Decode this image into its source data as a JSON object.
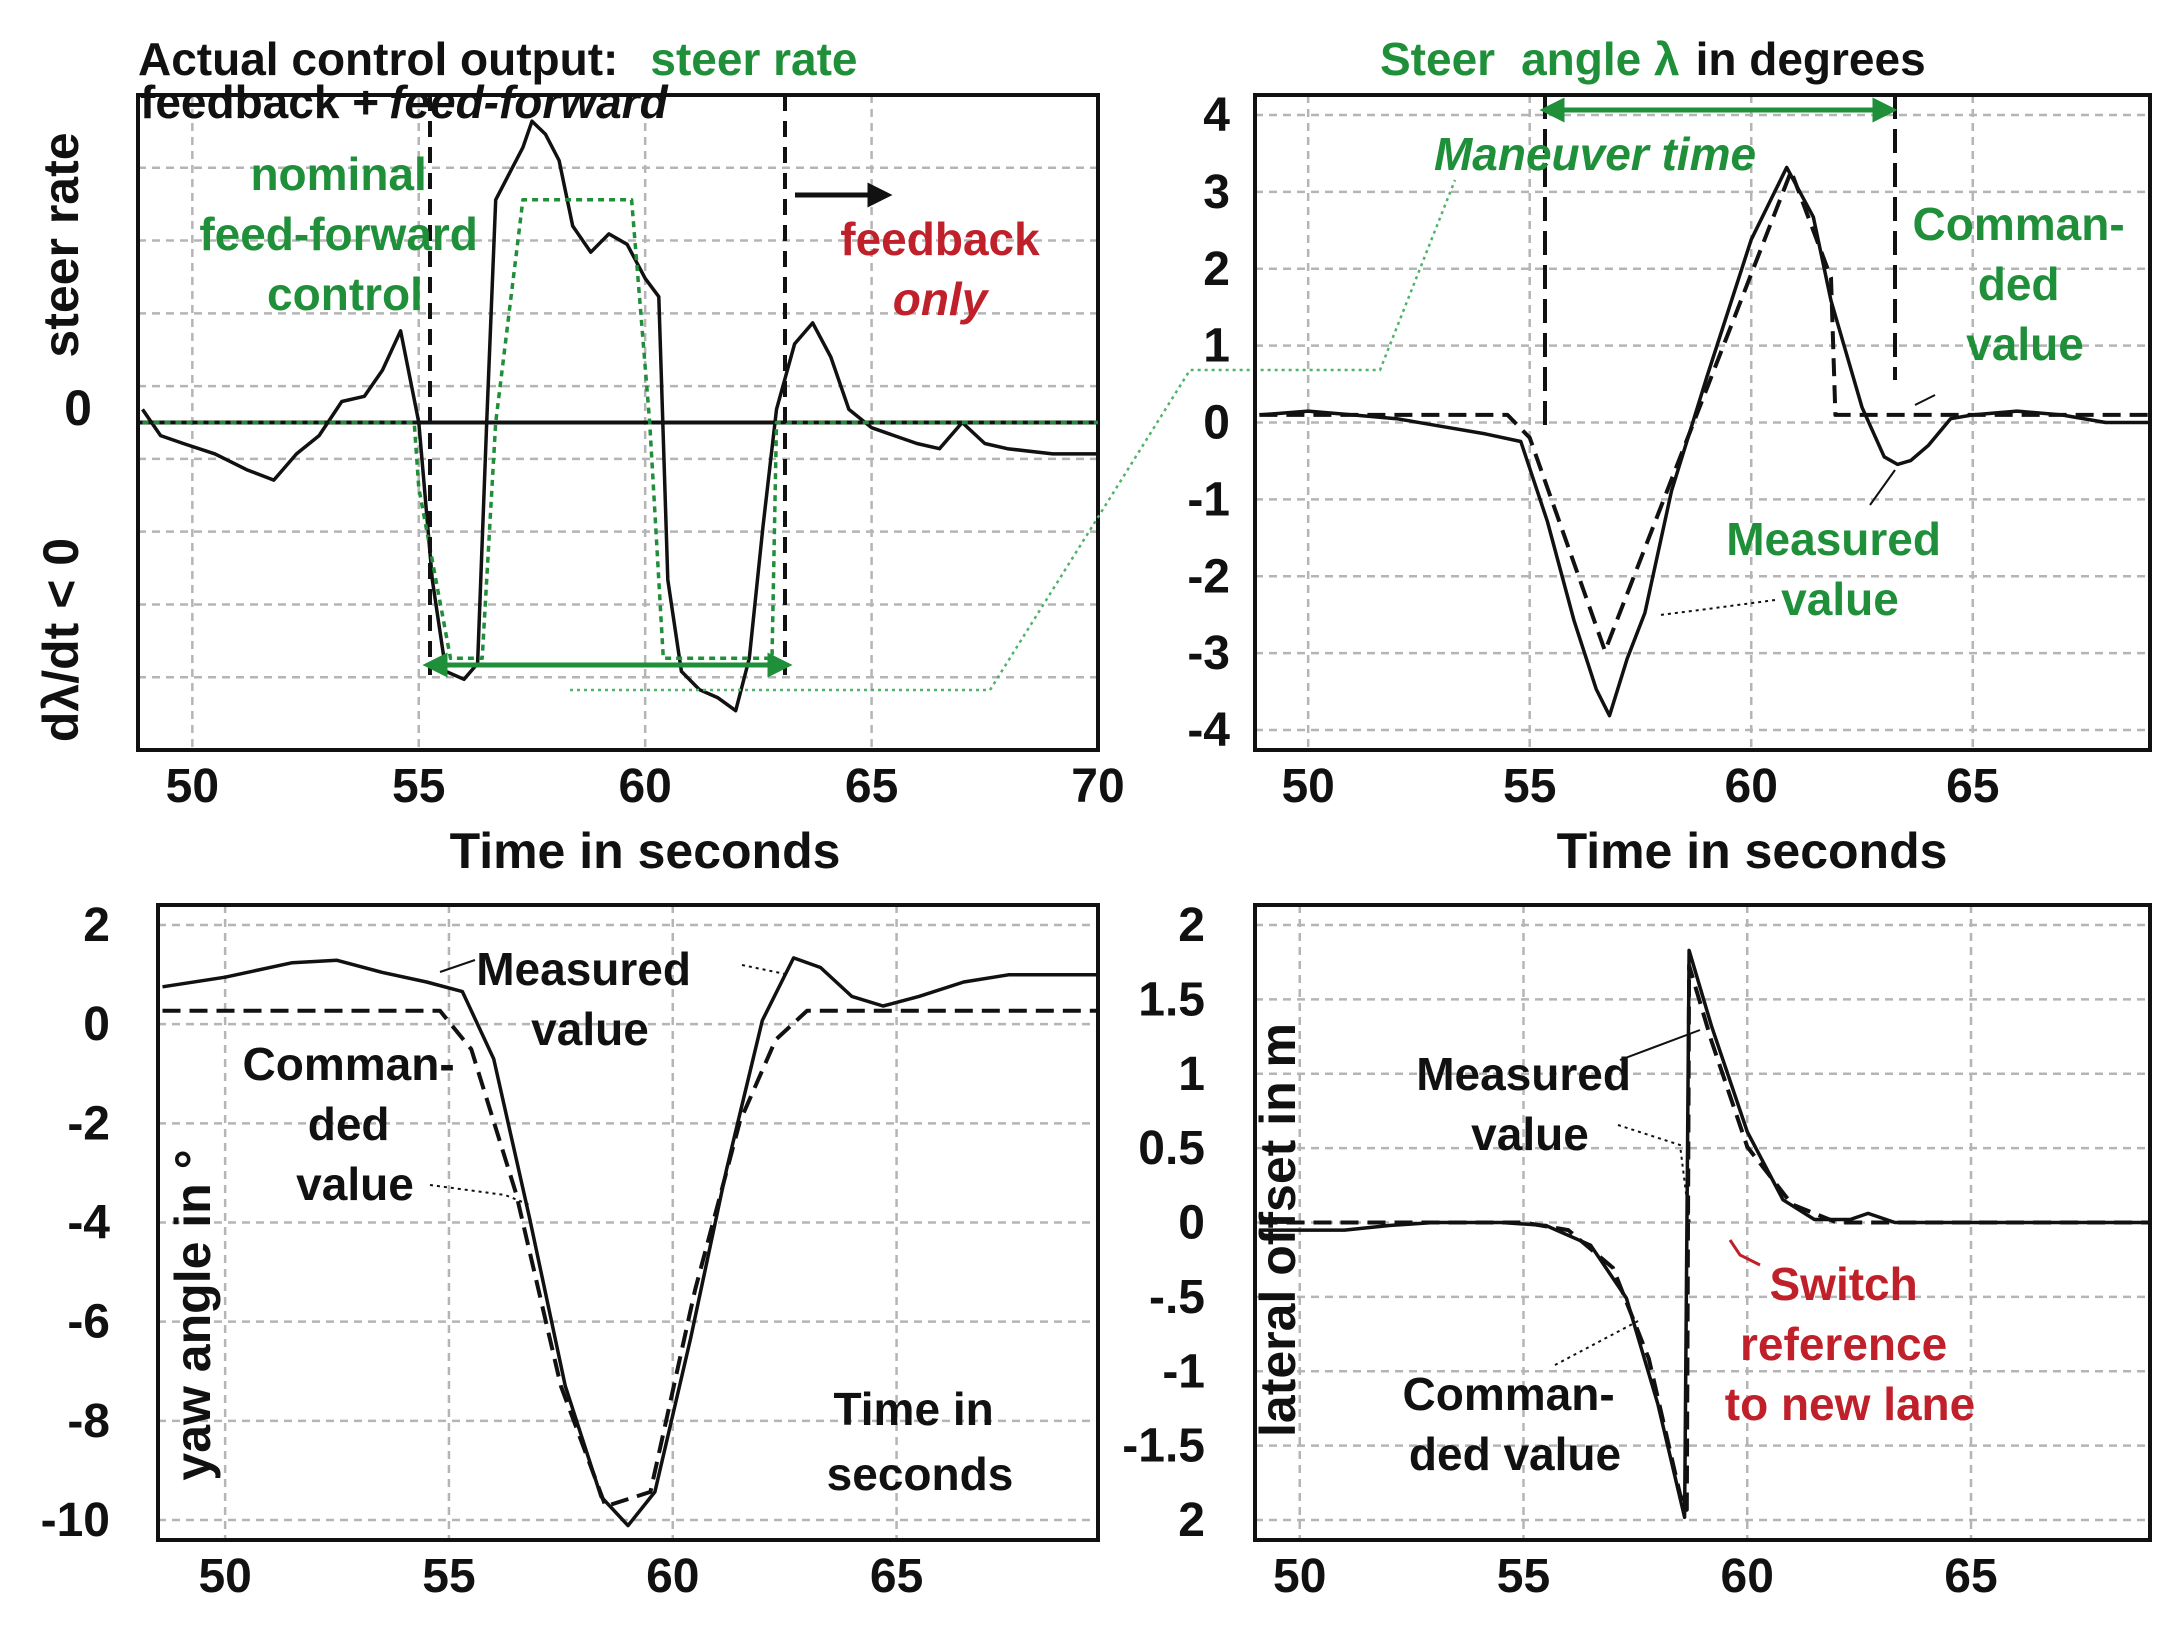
{
  "colors": {
    "green": "#1f8f3a",
    "red": "#c0202a",
    "black": "#111111",
    "grid": "#b5b5b5"
  },
  "chart_data": [
    {
      "id": "steer_rate",
      "type": "line",
      "title": "Actual control output:",
      "title_suffix": "steer rate",
      "subtitle_a": "feedback +",
      "subtitle_b": "feed-forward",
      "xlabel": "Time in seconds",
      "ylabel_top": "steer rate",
      "ylabel_zero": "0",
      "ylabel_bottom": "dλ/dt < 0",
      "xlim": [
        48.8,
        70
      ],
      "ylim": [
        -1.25,
        1.25
      ],
      "xticks": [
        "50",
        "55",
        "60",
        "65",
        "70"
      ],
      "annotations": {
        "nominal": [
          "nominal",
          "feed-forward",
          "control"
        ],
        "feedback": "feedback",
        "only": "only"
      },
      "series": [
        {
          "style": "measured",
          "x": [
            48.9,
            49.3,
            49.8,
            50.5,
            51.2,
            51.8,
            52.3,
            52.8,
            53.3,
            53.8,
            54.2,
            54.6,
            55.0,
            55.3,
            55.6,
            56.0,
            56.3,
            56.5,
            56.7,
            57.0,
            57.3,
            57.5,
            57.8,
            58.1,
            58.4,
            58.8,
            59.2,
            59.6,
            60.0,
            60.3,
            60.5,
            60.8,
            61.2,
            61.6,
            62.0,
            62.3,
            62.6,
            62.9,
            63.3,
            63.7,
            64.1,
            64.5,
            65.0,
            65.5,
            66.0,
            66.5,
            67.0,
            67.5,
            68.0,
            69.0,
            70.0
          ],
          "y": [
            0.05,
            -0.05,
            -0.08,
            -0.12,
            -0.18,
            -0.22,
            -0.12,
            -0.05,
            0.08,
            0.1,
            0.2,
            0.35,
            0.0,
            -0.6,
            -0.95,
            -0.98,
            -0.92,
            0.0,
            0.85,
            0.95,
            1.05,
            1.15,
            1.1,
            1.0,
            0.75,
            0.65,
            0.72,
            0.68,
            0.55,
            0.48,
            -0.6,
            -0.95,
            -1.02,
            -1.05,
            -1.1,
            -0.9,
            -0.4,
            0.05,
            0.3,
            0.38,
            0.25,
            0.05,
            -0.02,
            -0.05,
            -0.08,
            -0.1,
            0.0,
            -0.08,
            -0.1,
            -0.12,
            -0.12
          ]
        },
        {
          "style": "nominal",
          "x": [
            48.9,
            54.9,
            55.0,
            55.7,
            56.4,
            56.7,
            57.3,
            59.7,
            60.1,
            60.4,
            62.0,
            62.8,
            62.9,
            70.0
          ],
          "y": [
            0.0,
            0.0,
            -0.25,
            -0.9,
            -0.9,
            0.0,
            0.85,
            0.85,
            0.0,
            -0.9,
            -0.9,
            -0.9,
            0.0,
            0.0
          ]
        }
      ]
    },
    {
      "id": "steer_angle",
      "type": "line",
      "title": "Steer",
      "title_suffix": "angle λ",
      "title_end": "in degrees",
      "xlabel": "Time in seconds",
      "xlim": [
        48.8,
        69
      ],
      "ylim": [
        -4.4,
        4.2
      ],
      "xticks": [
        "50",
        "55",
        "60",
        "65"
      ],
      "yticks": [
        "4",
        "3",
        "2",
        "1",
        "0",
        "-1",
        "-2",
        "-3",
        "-4"
      ],
      "annotations": {
        "maneuver_time": "Maneuver time",
        "commanded": [
          "Comman-",
          "ded",
          "value"
        ],
        "measured": [
          "Measured",
          "value"
        ]
      },
      "series": [
        {
          "name": "Commanded value",
          "style": "dashed",
          "x": [
            48.9,
            54.5,
            55.0,
            56.7,
            60.9,
            61.8,
            61.9,
            69.0
          ],
          "y": [
            0.0,
            0.0,
            -0.3,
            -3.1,
            3.2,
            1.8,
            0.0,
            0.0
          ]
        },
        {
          "name": "Measured value",
          "style": "measured",
          "x": [
            48.9,
            50.0,
            51.0,
            52.0,
            53.0,
            54.0,
            54.8,
            55.4,
            56.0,
            56.5,
            56.8,
            57.2,
            57.6,
            58.2,
            59.0,
            60.0,
            60.8,
            61.4,
            61.8,
            62.5,
            63.0,
            63.3,
            63.6,
            64.0,
            64.5,
            65.0,
            66.0,
            67.0,
            68.0,
            69.0
          ],
          "y": [
            0.0,
            0.05,
            0.0,
            -0.05,
            -0.15,
            -0.25,
            -0.35,
            -1.4,
            -2.7,
            -3.6,
            -3.95,
            -3.2,
            -2.6,
            -1.0,
            0.5,
            2.3,
            3.25,
            2.6,
            1.5,
            0.1,
            -0.55,
            -0.65,
            -0.6,
            -0.4,
            -0.05,
            0.0,
            0.05,
            0.0,
            -0.1,
            -0.1
          ]
        }
      ]
    },
    {
      "id": "yaw_angle",
      "type": "line",
      "ylabel": "yaw angle in °",
      "xlim": [
        48.5,
        69.5
      ],
      "ylim": [
        -11.2,
        2
      ],
      "xticks": [
        "50",
        "55",
        "60",
        "65"
      ],
      "yticks": [
        "2",
        "0",
        "-2",
        "-4",
        "-6",
        "-8",
        "-10"
      ],
      "annotations": {
        "measured": [
          "Measured",
          "value"
        ],
        "commanded": [
          "Comman-",
          "ded",
          "value"
        ],
        "time_label": [
          "Time in",
          "seconds"
        ]
      },
      "series": [
        {
          "name": "Commanded value",
          "style": "dashed",
          "x": [
            48.6,
            54.8,
            55.5,
            56.5,
            57.5,
            58.5,
            59.5,
            60.5,
            61.5,
            62.3,
            63.0,
            69.5
          ],
          "y": [
            -0.2,
            -0.2,
            -1.0,
            -4.0,
            -8.0,
            -10.5,
            -10.2,
            -6.0,
            -2.5,
            -0.8,
            -0.2,
            -0.2
          ]
        },
        {
          "name": "Measured value",
          "style": "solid",
          "x": [
            48.6,
            50.0,
            51.5,
            52.5,
            53.5,
            54.5,
            55.3,
            56.0,
            56.8,
            57.6,
            58.4,
            59.0,
            59.6,
            60.4,
            61.2,
            62.0,
            62.7,
            63.3,
            64.0,
            64.7,
            65.5,
            66.5,
            67.5,
            69.5
          ],
          "y": [
            0.3,
            0.5,
            0.8,
            0.85,
            0.6,
            0.4,
            0.2,
            -1.2,
            -4.5,
            -8.0,
            -10.3,
            -10.9,
            -10.2,
            -7.0,
            -3.5,
            -0.4,
            0.9,
            0.7,
            0.1,
            -0.1,
            0.1,
            0.4,
            0.55,
            0.55
          ]
        }
      ]
    },
    {
      "id": "lateral_offset",
      "type": "line",
      "ylabel": "lateral offset in m",
      "xlim": [
        49,
        69
      ],
      "ylim": [
        -2.1,
        2.1
      ],
      "xticks": [
        "50",
        "55",
        "60",
        "65"
      ],
      "yticks": [
        "2",
        "1.5",
        "1",
        "0.5",
        "0",
        "-.5",
        "-1",
        "-1.5",
        "2"
      ],
      "annotations": {
        "measured": [
          "Measured",
          "value"
        ],
        "commanded": [
          "Comman-",
          "ded value"
        ],
        "switch": [
          "Switch",
          "reference",
          "to new lane"
        ]
      },
      "series": [
        {
          "name": "Commanded value",
          "style": "dashed",
          "x": [
            49.1,
            55.0,
            56.0,
            57.0,
            57.8,
            58.5,
            58.65,
            58.7,
            59.2,
            60.0,
            61.0,
            62.0,
            69.0
          ],
          "y": [
            0.0,
            0.0,
            -0.05,
            -0.3,
            -0.9,
            -1.8,
            -1.9,
            1.7,
            1.2,
            0.5,
            0.12,
            0.0,
            0.0
          ]
        },
        {
          "name": "Measured value",
          "style": "solid",
          "x": [
            49.1,
            50.0,
            51.0,
            52.0,
            53.0,
            54.5,
            55.5,
            56.5,
            57.3,
            58.0,
            58.6,
            58.7,
            59.2,
            60.0,
            60.8,
            61.5,
            62.3,
            62.7,
            63.3,
            64.5,
            66.0,
            69.0
          ],
          "y": [
            -0.05,
            -0.05,
            -0.05,
            -0.02,
            0.0,
            0.0,
            -0.02,
            -0.15,
            -0.5,
            -1.2,
            -1.95,
            1.8,
            1.3,
            0.6,
            0.15,
            0.02,
            0.02,
            0.06,
            0.0,
            0.0,
            0.0,
            0.0
          ]
        }
      ]
    }
  ]
}
